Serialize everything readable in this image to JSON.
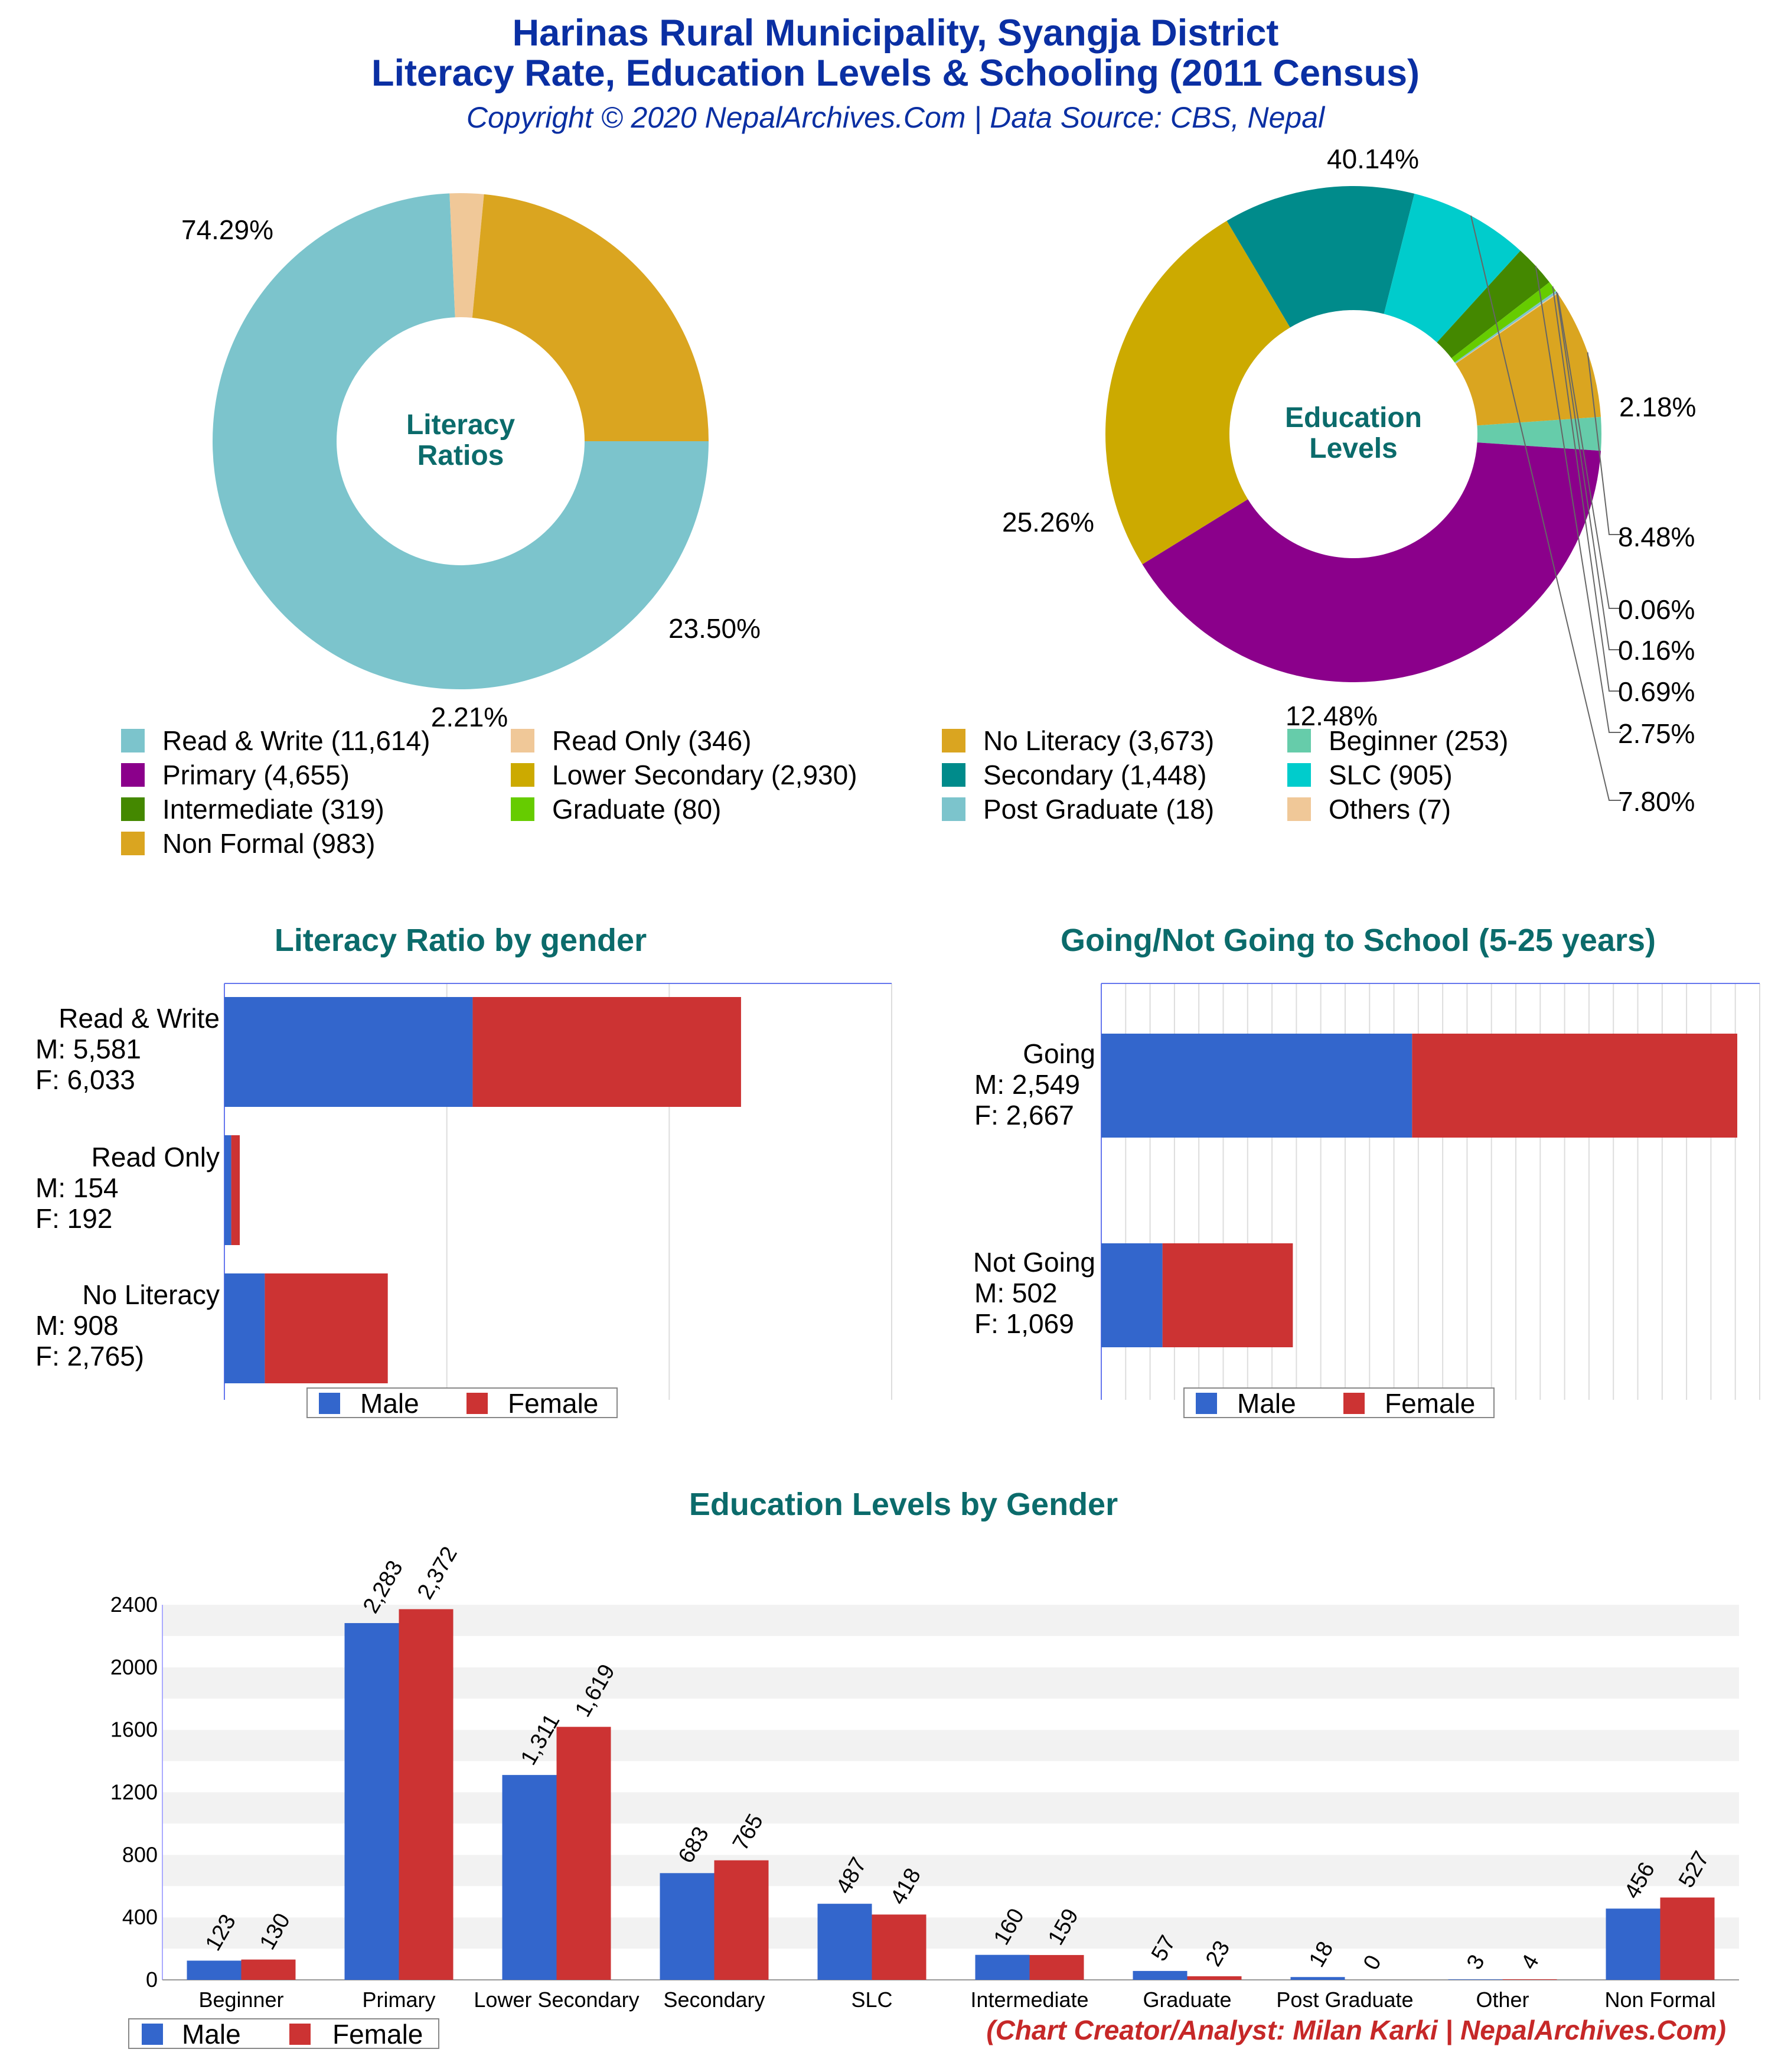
{
  "header": {
    "title_line1": "Harinas Rural Municipality, Syangja District",
    "title_line2": "Literacy Rate, Education Levels & Schooling (2011 Census)",
    "subtitle": "Copyright © 2020 NepalArchives.Com | Data Source: CBS, Nepal"
  },
  "footer": {
    "credit": "(Chart Creator/Analyst: Milan Karki | NepalArchives.Com)"
  },
  "colors": {
    "male": "#3366cc",
    "female": "#cc3333",
    "title_teal": "#0b6b6b",
    "title_blue": "#0a2fa3"
  },
  "chart_data": [
    {
      "type": "pie",
      "center_label": [
        "Literacy",
        "Ratios"
      ],
      "slices": [
        {
          "name": "Read & Write",
          "value": 11614,
          "pct_label": "74.29%",
          "color": "#7cc4cc"
        },
        {
          "name": "Read Only",
          "value": 346,
          "pct_label": "2.21%",
          "color": "#f0c898"
        },
        {
          "name": "No Literacy",
          "value": 3673,
          "pct_label": "23.50%",
          "color": "#daa520"
        }
      ]
    },
    {
      "type": "pie",
      "center_label": [
        "Education",
        "Levels"
      ],
      "slices": [
        {
          "name": "Beginner",
          "value": 253,
          "pct_label": "2.18%",
          "color": "#66ccaa"
        },
        {
          "name": "Primary",
          "value": 4655,
          "pct_label": "40.14%",
          "color": "#8b008b"
        },
        {
          "name": "Lower Secondary",
          "value": 2930,
          "pct_label": "25.26%",
          "color": "#ccaa00"
        },
        {
          "name": "Secondary",
          "value": 1448,
          "pct_label": "12.48%",
          "color": "#008b8b"
        },
        {
          "name": "SLC",
          "value": 905,
          "pct_label": "7.80%",
          "color": "#00cccc"
        },
        {
          "name": "Intermediate",
          "value": 319,
          "pct_label": "2.75%",
          "color": "#448800"
        },
        {
          "name": "Graduate",
          "value": 80,
          "pct_label": "0.69%",
          "color": "#66cc00"
        },
        {
          "name": "Post Graduate",
          "value": 18,
          "pct_label": "0.16%",
          "color": "#7cc4cc"
        },
        {
          "name": "Others",
          "value": 7,
          "pct_label": "0.06%",
          "color": "#f0c898"
        },
        {
          "name": "Non Formal",
          "value": 983,
          "pct_label": "8.48%",
          "color": "#daa520"
        }
      ]
    },
    {
      "type": "bar",
      "orientation": "horizontal",
      "stacked": true,
      "title": "Literacy Ratio by gender",
      "categories": [
        "Read & Write",
        "Read Only",
        "No Literacy"
      ],
      "category_labels": [
        [
          "Read & Write",
          "M: 5,581",
          "F: 6,033"
        ],
        [
          "Read Only",
          "M: 154",
          "F: 192"
        ],
        [
          "No Literacy",
          "M: 908",
          "F: 2,765)"
        ]
      ],
      "series": [
        {
          "name": "Male",
          "values": [
            5581,
            154,
            908
          ]
        },
        {
          "name": "Female",
          "values": [
            6033,
            192,
            2765
          ]
        }
      ],
      "xlim": [
        0,
        15000
      ],
      "legend": "bottom"
    },
    {
      "type": "bar",
      "orientation": "horizontal",
      "stacked": true,
      "title": "Going/Not Going to School (5-25 years)",
      "categories": [
        "Going",
        "Not Going"
      ],
      "category_labels": [
        [
          "Going",
          "M: 2,549",
          "F: 2,667"
        ],
        [
          "Not Going",
          "M: 502",
          "F: 1,069"
        ]
      ],
      "series": [
        {
          "name": "Male",
          "values": [
            2549,
            502
          ]
        },
        {
          "name": "Female",
          "values": [
            2667,
            1069
          ]
        }
      ],
      "xlim": [
        0,
        5400
      ],
      "legend": "bottom"
    },
    {
      "type": "bar",
      "title": "Education Levels by Gender",
      "categories": [
        "Beginner",
        "Primary",
        "Lower Secondary",
        "Secondary",
        "SLC",
        "Intermediate",
        "Graduate",
        "Post Graduate",
        "Other",
        "Non Formal"
      ],
      "series": [
        {
          "name": "Male",
          "values": [
            123,
            2283,
            1311,
            683,
            487,
            160,
            57,
            18,
            3,
            456
          ],
          "labels": [
            "123",
            "2,283",
            "1,311",
            "683",
            "487",
            "160",
            "57",
            "18",
            "3",
            "456"
          ]
        },
        {
          "name": "Female",
          "values": [
            130,
            2372,
            1619,
            765,
            418,
            159,
            23,
            0,
            4,
            527
          ],
          "labels": [
            "130",
            "2,372",
            "1,619",
            "765",
            "418",
            "159",
            "23",
            "0",
            "4",
            "527"
          ]
        }
      ],
      "ylim": [
        0,
        2400
      ],
      "yticks": [
        "0",
        "400",
        "800",
        "1200",
        "1600",
        "2000",
        "2400"
      ],
      "legend": "bottom-left"
    }
  ]
}
